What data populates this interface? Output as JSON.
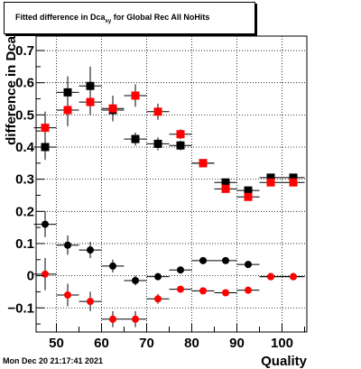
{
  "title": {
    "prefix": "Fitted difference in Dca",
    "subscript": "xy",
    "suffix": " for Global Rec All NoHits"
  },
  "timestamp": "Mon Dec 20 21:17:41 2021",
  "chart_data": {
    "type": "scatter",
    "xlabel": "Quality",
    "ylabel": "difference in Dca",
    "xlim": [
      45.5,
      105.5
    ],
    "ylim": [
      -0.175,
      0.745
    ],
    "xticks": [
      50,
      60,
      70,
      80,
      90,
      100
    ],
    "yticks": [
      -0.1,
      0,
      0.1,
      0.2,
      0.3,
      0.4,
      0.5,
      0.6,
      0.7
    ],
    "ytick_labels": [
      "−0.1",
      "0",
      "0.1",
      "0.2",
      "0.3",
      "0.4",
      "0.5",
      "0.6",
      "0.7"
    ],
    "grid": true,
    "series": [
      {
        "marker": "square",
        "color": "#000000",
        "points": [
          {
            "x": 47.5,
            "y": 0.4,
            "err": 0.04
          },
          {
            "x": 52.5,
            "y": 0.57,
            "err": 0.05
          },
          {
            "x": 57.5,
            "y": 0.59,
            "err": 0.06
          },
          {
            "x": 62.5,
            "y": 0.515,
            "err": 0.03
          },
          {
            "x": 67.5,
            "y": 0.425,
            "err": 0.02
          },
          {
            "x": 72.5,
            "y": 0.41,
            "err": 0.02
          },
          {
            "x": 77.5,
            "y": 0.405,
            "err": 0.015
          },
          {
            "x": 82.5,
            "y": 0.35,
            "err": 0.01
          },
          {
            "x": 87.5,
            "y": 0.29,
            "err": 0.01
          },
          {
            "x": 92.5,
            "y": 0.265,
            "err": 0.01
          },
          {
            "x": 97.5,
            "y": 0.305,
            "err": 0.008
          },
          {
            "x": 102.5,
            "y": 0.305,
            "err": 0.008
          }
        ]
      },
      {
        "marker": "square",
        "color": "#ff0000",
        "points": [
          {
            "x": 47.5,
            "y": 0.46,
            "err": 0.05
          },
          {
            "x": 52.5,
            "y": 0.515,
            "err": 0.05
          },
          {
            "x": 57.5,
            "y": 0.54,
            "err": 0.04
          },
          {
            "x": 62.5,
            "y": 0.52,
            "err": 0.04
          },
          {
            "x": 67.5,
            "y": 0.56,
            "err": 0.035
          },
          {
            "x": 72.5,
            "y": 0.51,
            "err": 0.025
          },
          {
            "x": 77.5,
            "y": 0.44,
            "err": 0.015
          },
          {
            "x": 82.5,
            "y": 0.35,
            "err": 0.01
          },
          {
            "x": 87.5,
            "y": 0.27,
            "err": 0.01
          },
          {
            "x": 92.5,
            "y": 0.245,
            "err": 0.01
          },
          {
            "x": 97.5,
            "y": 0.29,
            "err": 0.008
          },
          {
            "x": 102.5,
            "y": 0.29,
            "err": 0.008
          }
        ]
      },
      {
        "marker": "circle",
        "color": "#000000",
        "points": [
          {
            "x": 47.5,
            "y": 0.16,
            "err": 0.04
          },
          {
            "x": 52.5,
            "y": 0.095,
            "err": 0.03
          },
          {
            "x": 57.5,
            "y": 0.08,
            "err": 0.025
          },
          {
            "x": 62.5,
            "y": 0.03,
            "err": 0.02
          },
          {
            "x": 67.5,
            "y": -0.015,
            "err": 0.015
          },
          {
            "x": 72.5,
            "y": -0.003,
            "err": 0.01
          },
          {
            "x": 77.5,
            "y": 0.018,
            "err": 0.008
          },
          {
            "x": 82.5,
            "y": 0.047,
            "err": 0.006
          },
          {
            "x": 87.5,
            "y": 0.047,
            "err": 0.005
          },
          {
            "x": 92.5,
            "y": 0.035,
            "err": 0.005
          },
          {
            "x": 97.5,
            "y": -0.003,
            "err": 0.004
          },
          {
            "x": 102.5,
            "y": -0.003,
            "err": 0.004
          }
        ]
      },
      {
        "marker": "circle",
        "color": "#ff0000",
        "points": [
          {
            "x": 47.5,
            "y": 0.005,
            "err": 0.05
          },
          {
            "x": 52.5,
            "y": -0.06,
            "err": 0.035
          },
          {
            "x": 57.5,
            "y": -0.08,
            "err": 0.03
          },
          {
            "x": 62.5,
            "y": -0.135,
            "err": 0.025
          },
          {
            "x": 67.5,
            "y": -0.135,
            "err": 0.025
          },
          {
            "x": 72.5,
            "y": -0.072,
            "err": 0.015
          },
          {
            "x": 77.5,
            "y": -0.042,
            "err": 0.01
          },
          {
            "x": 82.5,
            "y": -0.047,
            "err": 0.008
          },
          {
            "x": 87.5,
            "y": -0.053,
            "err": 0.008
          },
          {
            "x": 92.5,
            "y": -0.045,
            "err": 0.007
          },
          {
            "x": 97.5,
            "y": -0.003,
            "err": 0.005
          },
          {
            "x": 102.5,
            "y": -0.003,
            "err": 0.005
          }
        ]
      }
    ]
  }
}
